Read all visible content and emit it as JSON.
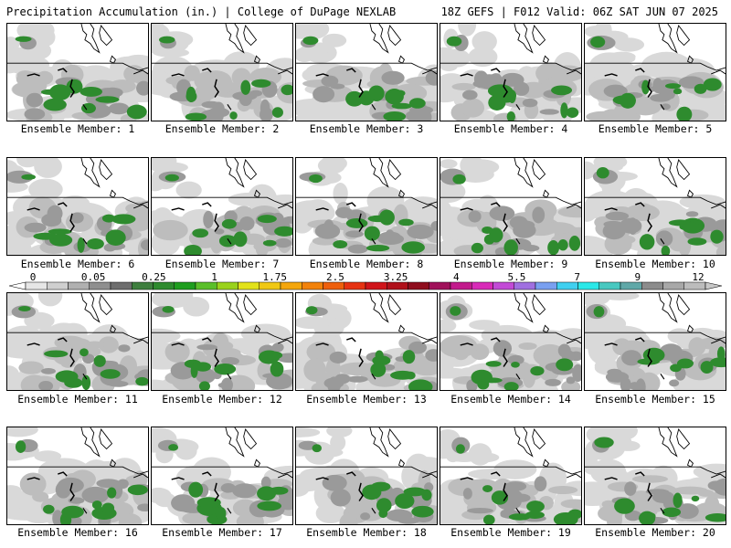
{
  "header": {
    "left": "Precipitation Accumulation (in.) | College of DuPage NEXLAB",
    "right": "18Z GEFS | F012 Valid: 06Z SAT JUN 07 2025"
  },
  "member_prefix": "Ensemble Member:",
  "members": [
    1,
    2,
    3,
    4,
    5,
    6,
    7,
    8,
    9,
    10,
    11,
    12,
    13,
    14,
    15,
    16,
    17,
    18,
    19,
    20
  ],
  "colorbar": {
    "tick_labels": [
      "0",
      "0.05",
      "0.25",
      "1",
      "1.75",
      "2.5",
      "3.25",
      "4",
      "5.5",
      "7",
      "9",
      "12"
    ],
    "colors": [
      "#e6e6e6",
      "#cfcfcf",
      "#b0b0b0",
      "#8f8f8f",
      "#6e6e6e",
      "#3f7f3f",
      "#2e8b2e",
      "#1f9e1f",
      "#5abf2a",
      "#9ad21c",
      "#e2e21a",
      "#f0c814",
      "#f4a60c",
      "#f2820a",
      "#ee5f0c",
      "#e63212",
      "#d0141a",
      "#b0101a",
      "#8f0d1d",
      "#a0115a",
      "#c21a8c",
      "#d82ab8",
      "#c24ad6",
      "#a070e0",
      "#7aa0f0",
      "#40d0f0",
      "#2ae8e8",
      "#48c8c0",
      "#60a8a8",
      "#8c8c8c",
      "#a8a8a8",
      "#bcbcbc"
    ]
  },
  "colors": {
    "light": "#d9d9d9",
    "medium": "#bdbdbd",
    "dark": "#9a9a9a",
    "green": "#2e8b2e",
    "map_line": "#000000"
  }
}
